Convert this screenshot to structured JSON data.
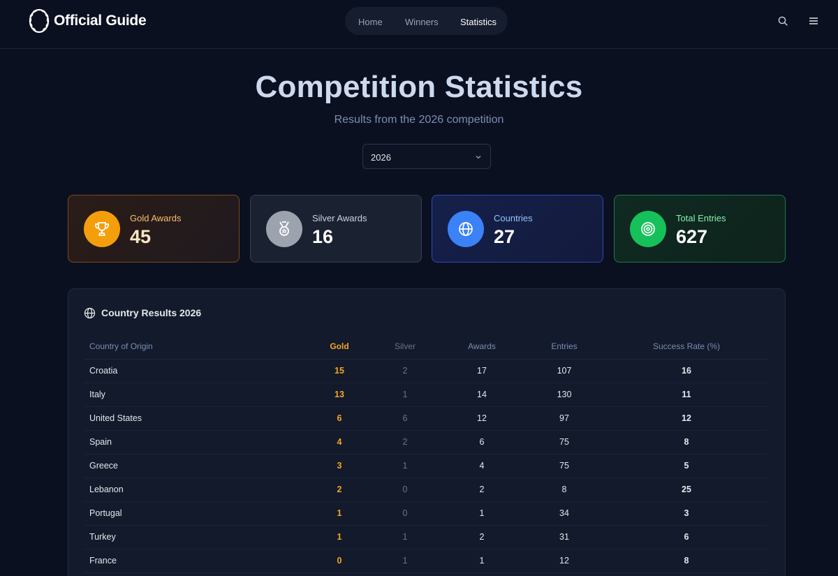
{
  "header": {
    "brand": "Official Guide",
    "nav": [
      {
        "label": "Home",
        "active": false
      },
      {
        "label": "Winners",
        "active": false
      },
      {
        "label": "Statistics",
        "active": true
      }
    ]
  },
  "hero": {
    "title": "Competition Statistics",
    "subtitle": "Results from the 2026 competition",
    "year_select": {
      "value": "2026"
    }
  },
  "stats": [
    {
      "label": "Gold Awards",
      "value": "45",
      "icon": "trophy-icon",
      "accent": "#f59e0b"
    },
    {
      "label": "Silver Awards",
      "value": "16",
      "icon": "medal-icon",
      "accent": "#9ca3af"
    },
    {
      "label": "Countries",
      "value": "27",
      "icon": "globe-icon",
      "accent": "#3b82f6"
    },
    {
      "label": "Total Entries",
      "value": "627",
      "icon": "target-icon",
      "accent": "#16c05a"
    }
  ],
  "results": {
    "title": "Country Results 2026",
    "columns": [
      "Country of Origin",
      "Gold",
      "Silver",
      "Awards",
      "Entries",
      "Success Rate (%)"
    ],
    "rows": [
      [
        "Croatia",
        "15",
        "2",
        "17",
        "107",
        "16"
      ],
      [
        "Italy",
        "13",
        "1",
        "14",
        "130",
        "11"
      ],
      [
        "United States",
        "6",
        "6",
        "12",
        "97",
        "12"
      ],
      [
        "Spain",
        "4",
        "2",
        "6",
        "75",
        "8"
      ],
      [
        "Greece",
        "3",
        "1",
        "4",
        "75",
        "5"
      ],
      [
        "Lebanon",
        "2",
        "0",
        "2",
        "8",
        "25"
      ],
      [
        "Portugal",
        "1",
        "0",
        "1",
        "34",
        "3"
      ],
      [
        "Turkey",
        "1",
        "1",
        "2",
        "31",
        "6"
      ],
      [
        "France",
        "0",
        "1",
        "1",
        "12",
        "8"
      ]
    ]
  }
}
